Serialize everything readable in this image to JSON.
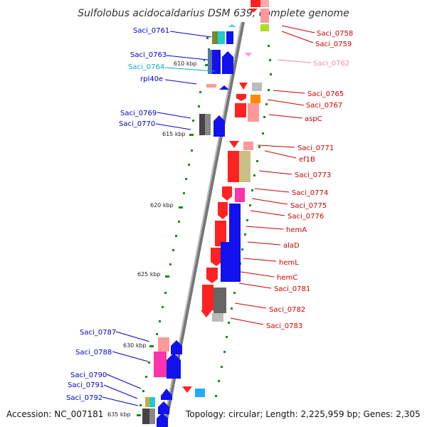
{
  "title": "Sulfolobus acidocaldarius DSM 639, complete genome",
  "footer": {
    "accession": "Accession: NC_007181",
    "topology": "Topology: circular; Length: 2,225,959 bp; Genes: 2,305"
  },
  "ticks": [
    "610 kbp",
    "615 kbp",
    "620 kbp",
    "625 kbp",
    "630 kbp",
    "635 kbp"
  ],
  "colors": {
    "left_labels": "#0000cc",
    "right_labels": "#cc0000",
    "backbone": "#888888",
    "tick_marks": "#1a8a1a"
  },
  "left_labels": [
    "Saci_0761",
    "Saci_0763",
    "Saci_0764",
    "rpl40e",
    "Saci_0769",
    "Saci_0770",
    "Saci_0787",
    "Saci_0788",
    "Saci_0790",
    "Saci_0791",
    "Saci_0792"
  ],
  "right_labels": [
    "Saci_0758",
    "Saci_0759",
    "Saci_0762",
    "Saci_0765",
    "Saci_0767",
    "aspC",
    "Saci_0771",
    "ef1B",
    "Saci_0773",
    "Saci_0774",
    "Saci_0775",
    "Saci_0776",
    "hemA",
    "alaD",
    "hemL",
    "hemC",
    "Saci_0781",
    "Saci_0782",
    "Saci_0783"
  ]
}
